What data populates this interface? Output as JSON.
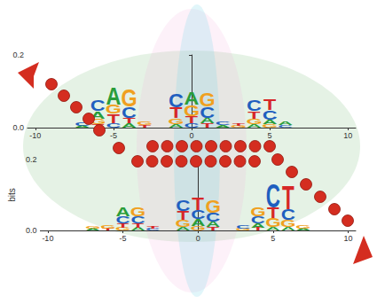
{
  "chart_data": [
    {
      "type": "sequence_logo",
      "xlim": [
        -10.5,
        10.5
      ],
      "xticks": [
        -10,
        -5,
        0,
        5,
        10
      ],
      "ylim": [
        0,
        0.2
      ],
      "yticks": [
        {
          "value": 0,
          "label": "0.0"
        },
        0.2
      ],
      "columns": [
        {
          "x": -7,
          "letters": [
            "A",
            "C"
          ],
          "heights": [
            0.005,
            0.008
          ],
          "colors": [
            "#2a9d3a",
            "#1f5fbf"
          ]
        },
        {
          "x": -6,
          "letters": [
            "T",
            "G",
            "A",
            "C"
          ],
          "heights": [
            0.01,
            0.015,
            0.02,
            0.03
          ],
          "colors": [
            "#d62728",
            "#f0a020",
            "#2a9d3a",
            "#1f5fbf"
          ]
        },
        {
          "x": -5,
          "letters": [
            "C",
            "T",
            "G",
            "A"
          ],
          "heights": [
            0.012,
            0.025,
            0.025,
            0.05
          ],
          "colors": [
            "#1f5fbf",
            "#d62728",
            "#f0a020",
            "#2a9d3a"
          ]
        },
        {
          "x": -4,
          "letters": [
            "A",
            "T",
            "C",
            "G"
          ],
          "heights": [
            0.012,
            0.015,
            0.03,
            0.05
          ],
          "colors": [
            "#2a9d3a",
            "#d62728",
            "#1f5fbf",
            "#f0a020"
          ]
        },
        {
          "x": -3,
          "letters": [
            "T",
            "G"
          ],
          "heights": [
            0.006,
            0.008
          ],
          "colors": [
            "#d62728",
            "#f0a020"
          ]
        },
        {
          "x": -1,
          "letters": [
            "A",
            "G",
            "T",
            "C"
          ],
          "heights": [
            0.01,
            0.015,
            0.03,
            0.04
          ],
          "colors": [
            "#2a9d3a",
            "#f0a020",
            "#d62728",
            "#1f5fbf"
          ]
        },
        {
          "x": 0,
          "letters": [
            "C",
            "T",
            "G",
            "A"
          ],
          "heights": [
            0.012,
            0.02,
            0.03,
            0.035
          ],
          "colors": [
            "#1f5fbf",
            "#d62728",
            "#f0a020",
            "#2a9d3a"
          ]
        },
        {
          "x": 1,
          "letters": [
            "T",
            "A",
            "C",
            "G"
          ],
          "heights": [
            0.012,
            0.015,
            0.03,
            0.04
          ],
          "colors": [
            "#d62728",
            "#2a9d3a",
            "#1f5fbf",
            "#f0a020"
          ]
        },
        {
          "x": 2,
          "letters": [
            "A",
            "C"
          ],
          "heights": [
            0.006,
            0.008
          ],
          "colors": [
            "#2a9d3a",
            "#1f5fbf"
          ]
        },
        {
          "x": 3,
          "letters": [
            "G",
            "T"
          ],
          "heights": [
            0.005,
            0.007
          ],
          "colors": [
            "#f0a020",
            "#d62728"
          ]
        },
        {
          "x": 4,
          "letters": [
            "A",
            "G",
            "T",
            "C"
          ],
          "heights": [
            0.01,
            0.015,
            0.02,
            0.03
          ],
          "colors": [
            "#2a9d3a",
            "#f0a020",
            "#d62728",
            "#1f5fbf"
          ]
        },
        {
          "x": 5,
          "letters": [
            "G",
            "A",
            "C",
            "T"
          ],
          "heights": [
            0.01,
            0.012,
            0.025,
            0.03
          ],
          "colors": [
            "#f0a020",
            "#2a9d3a",
            "#1f5fbf",
            "#d62728"
          ]
        },
        {
          "x": 6,
          "letters": [
            "C",
            "A"
          ],
          "heights": [
            0.006,
            0.008
          ],
          "colors": [
            "#1f5fbf",
            "#2a9d3a"
          ]
        }
      ]
    },
    {
      "type": "sequence_logo",
      "xlim": [
        -10.5,
        10.5
      ],
      "xticks": [
        -10,
        -5,
        0,
        5,
        10
      ],
      "ylim": [
        0,
        0.2
      ],
      "yticks": [
        {
          "value": 0,
          "label": "0.0"
        },
        0.2
      ],
      "ylabel": "bits",
      "columns": [
        {
          "x": -7,
          "letters": [
            "A",
            "G"
          ],
          "heights": [
            0.005,
            0.007
          ],
          "colors": [
            "#2a9d3a",
            "#f0a020"
          ]
        },
        {
          "x": -6,
          "letters": [
            "T",
            "G"
          ],
          "heights": [
            0.006,
            0.01
          ],
          "colors": [
            "#d62728",
            "#f0a020"
          ]
        },
        {
          "x": -5,
          "letters": [
            "G",
            "T",
            "C",
            "A"
          ],
          "heights": [
            0.008,
            0.012,
            0.02,
            0.025
          ],
          "colors": [
            "#f0a020",
            "#d62728",
            "#1f5fbf",
            "#2a9d3a"
          ]
        },
        {
          "x": -4,
          "letters": [
            "A",
            "T",
            "C",
            "G"
          ],
          "heights": [
            0.008,
            0.012,
            0.02,
            0.025
          ],
          "colors": [
            "#2a9d3a",
            "#d62728",
            "#1f5fbf",
            "#f0a020"
          ]
        },
        {
          "x": -3,
          "letters": [
            "C",
            "T"
          ],
          "heights": [
            0.005,
            0.006
          ],
          "colors": [
            "#1f5fbf",
            "#d62728"
          ]
        },
        {
          "x": -1,
          "letters": [
            "A",
            "G",
            "T",
            "C"
          ],
          "heights": [
            0.01,
            0.02,
            0.025,
            0.03
          ],
          "colors": [
            "#2a9d3a",
            "#f0a020",
            "#d62728",
            "#1f5fbf"
          ]
        },
        {
          "x": 0,
          "letters": [
            "G",
            "A",
            "C",
            "T"
          ],
          "heights": [
            0.012,
            0.02,
            0.025,
            0.035
          ],
          "colors": [
            "#f0a020",
            "#2a9d3a",
            "#1f5fbf",
            "#d62728"
          ]
        },
        {
          "x": 1,
          "letters": [
            "T",
            "A",
            "C",
            "G"
          ],
          "heights": [
            0.01,
            0.015,
            0.025,
            0.035
          ],
          "colors": [
            "#d62728",
            "#2a9d3a",
            "#1f5fbf",
            "#f0a020"
          ]
        },
        {
          "x": 3,
          "letters": [
            "G",
            "C"
          ],
          "heights": [
            0.006,
            0.01
          ],
          "colors": [
            "#f0a020",
            "#1f5fbf"
          ]
        },
        {
          "x": 4,
          "letters": [
            "T",
            "A",
            "C",
            "G"
          ],
          "heights": [
            0.008,
            0.012,
            0.02,
            0.025
          ],
          "colors": [
            "#d62728",
            "#2a9d3a",
            "#1f5fbf",
            "#f0a020"
          ]
        },
        {
          "x": 5,
          "letters": [
            "A",
            "G",
            "T",
            "C"
          ],
          "heights": [
            0.01,
            0.025,
            0.03,
            0.065
          ],
          "colors": [
            "#2a9d3a",
            "#f0a020",
            "#d62728",
            "#1f5fbf"
          ]
        },
        {
          "x": 6,
          "letters": [
            "A",
            "G",
            "C",
            "T"
          ],
          "heights": [
            0.01,
            0.02,
            0.03,
            0.065
          ],
          "colors": [
            "#2a9d3a",
            "#f0a020",
            "#1f5fbf",
            "#d62728"
          ]
        },
        {
          "x": 7,
          "letters": [
            "A",
            "G"
          ],
          "heights": [
            0.006,
            0.01
          ],
          "colors": [
            "#2a9d3a",
            "#f0a020"
          ]
        }
      ]
    }
  ]
}
